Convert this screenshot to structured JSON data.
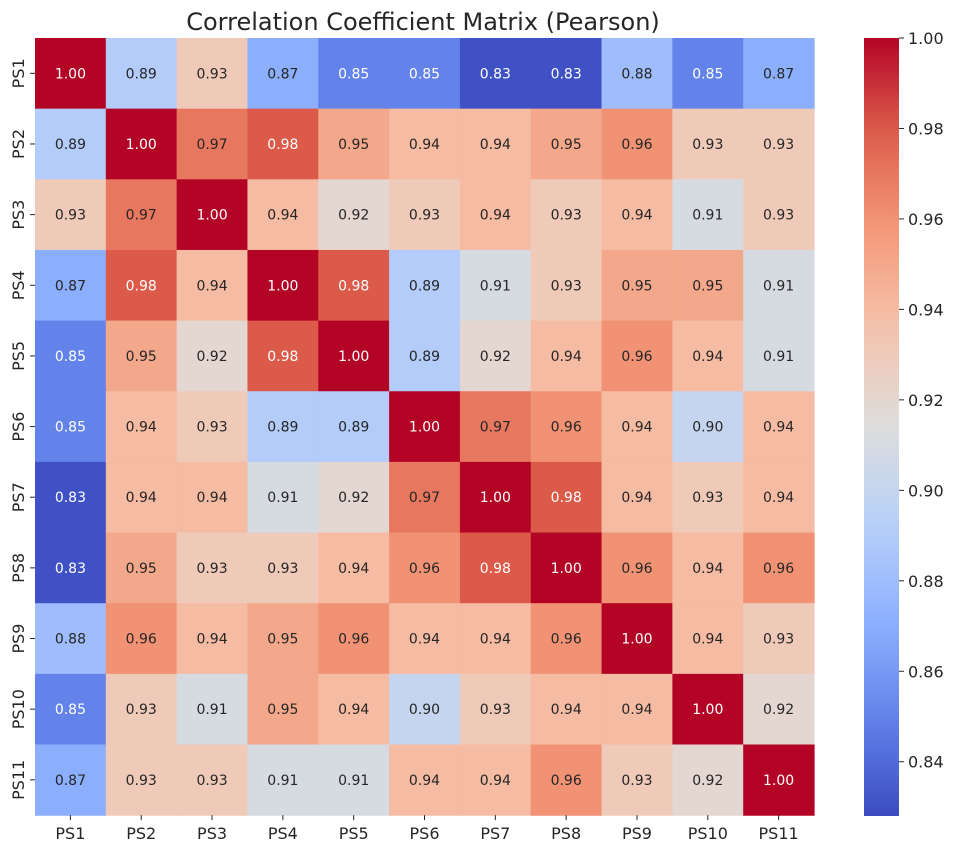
{
  "chart_data": {
    "type": "heatmap",
    "title": "Correlation Coefficient Matrix (Pearson)",
    "row_labels": [
      "PS1",
      "PS2",
      "PS3",
      "PS4",
      "PS5",
      "PS6",
      "PS7",
      "PS8",
      "PS9",
      "PS10",
      "PS11"
    ],
    "col_labels": [
      "PS1",
      "PS2",
      "PS3",
      "PS4",
      "PS5",
      "PS6",
      "PS7",
      "PS8",
      "PS9",
      "PS10",
      "PS11"
    ],
    "values": [
      [
        1.0,
        0.89,
        0.93,
        0.87,
        0.85,
        0.85,
        0.83,
        0.83,
        0.88,
        0.85,
        0.87
      ],
      [
        0.89,
        1.0,
        0.97,
        0.98,
        0.95,
        0.94,
        0.94,
        0.95,
        0.96,
        0.93,
        0.93
      ],
      [
        0.93,
        0.97,
        1.0,
        0.94,
        0.92,
        0.93,
        0.94,
        0.93,
        0.94,
        0.91,
        0.93
      ],
      [
        0.87,
        0.98,
        0.94,
        1.0,
        0.98,
        0.89,
        0.91,
        0.93,
        0.95,
        0.95,
        0.91
      ],
      [
        0.85,
        0.95,
        0.92,
        0.98,
        1.0,
        0.89,
        0.92,
        0.94,
        0.96,
        0.94,
        0.91
      ],
      [
        0.85,
        0.94,
        0.93,
        0.89,
        0.89,
        1.0,
        0.97,
        0.96,
        0.94,
        0.9,
        0.94
      ],
      [
        0.83,
        0.94,
        0.94,
        0.91,
        0.92,
        0.97,
        1.0,
        0.98,
        0.94,
        0.93,
        0.94
      ],
      [
        0.83,
        0.95,
        0.93,
        0.93,
        0.94,
        0.96,
        0.98,
        1.0,
        0.96,
        0.94,
        0.96
      ],
      [
        0.88,
        0.96,
        0.94,
        0.95,
        0.96,
        0.94,
        0.94,
        0.96,
        1.0,
        0.94,
        0.93
      ],
      [
        0.85,
        0.93,
        0.91,
        0.95,
        0.94,
        0.9,
        0.93,
        0.94,
        0.94,
        1.0,
        0.92
      ],
      [
        0.87,
        0.93,
        0.93,
        0.91,
        0.91,
        0.94,
        0.94,
        0.96,
        0.93,
        0.92,
        1.0
      ]
    ],
    "value_format": "2dp",
    "colormap": "coolwarm",
    "vmin": 0.828,
    "vmax": 1.0,
    "colorbar_ticks": [
      0.84,
      0.86,
      0.88,
      0.9,
      0.92,
      0.94,
      0.96,
      0.98,
      1.0
    ],
    "colorbar_tick_labels": [
      "0.84",
      "0.86",
      "0.88",
      "0.90",
      "0.92",
      "0.94",
      "0.96",
      "0.98",
      "1.00"
    ],
    "xlabel": "",
    "ylabel": ""
  }
}
